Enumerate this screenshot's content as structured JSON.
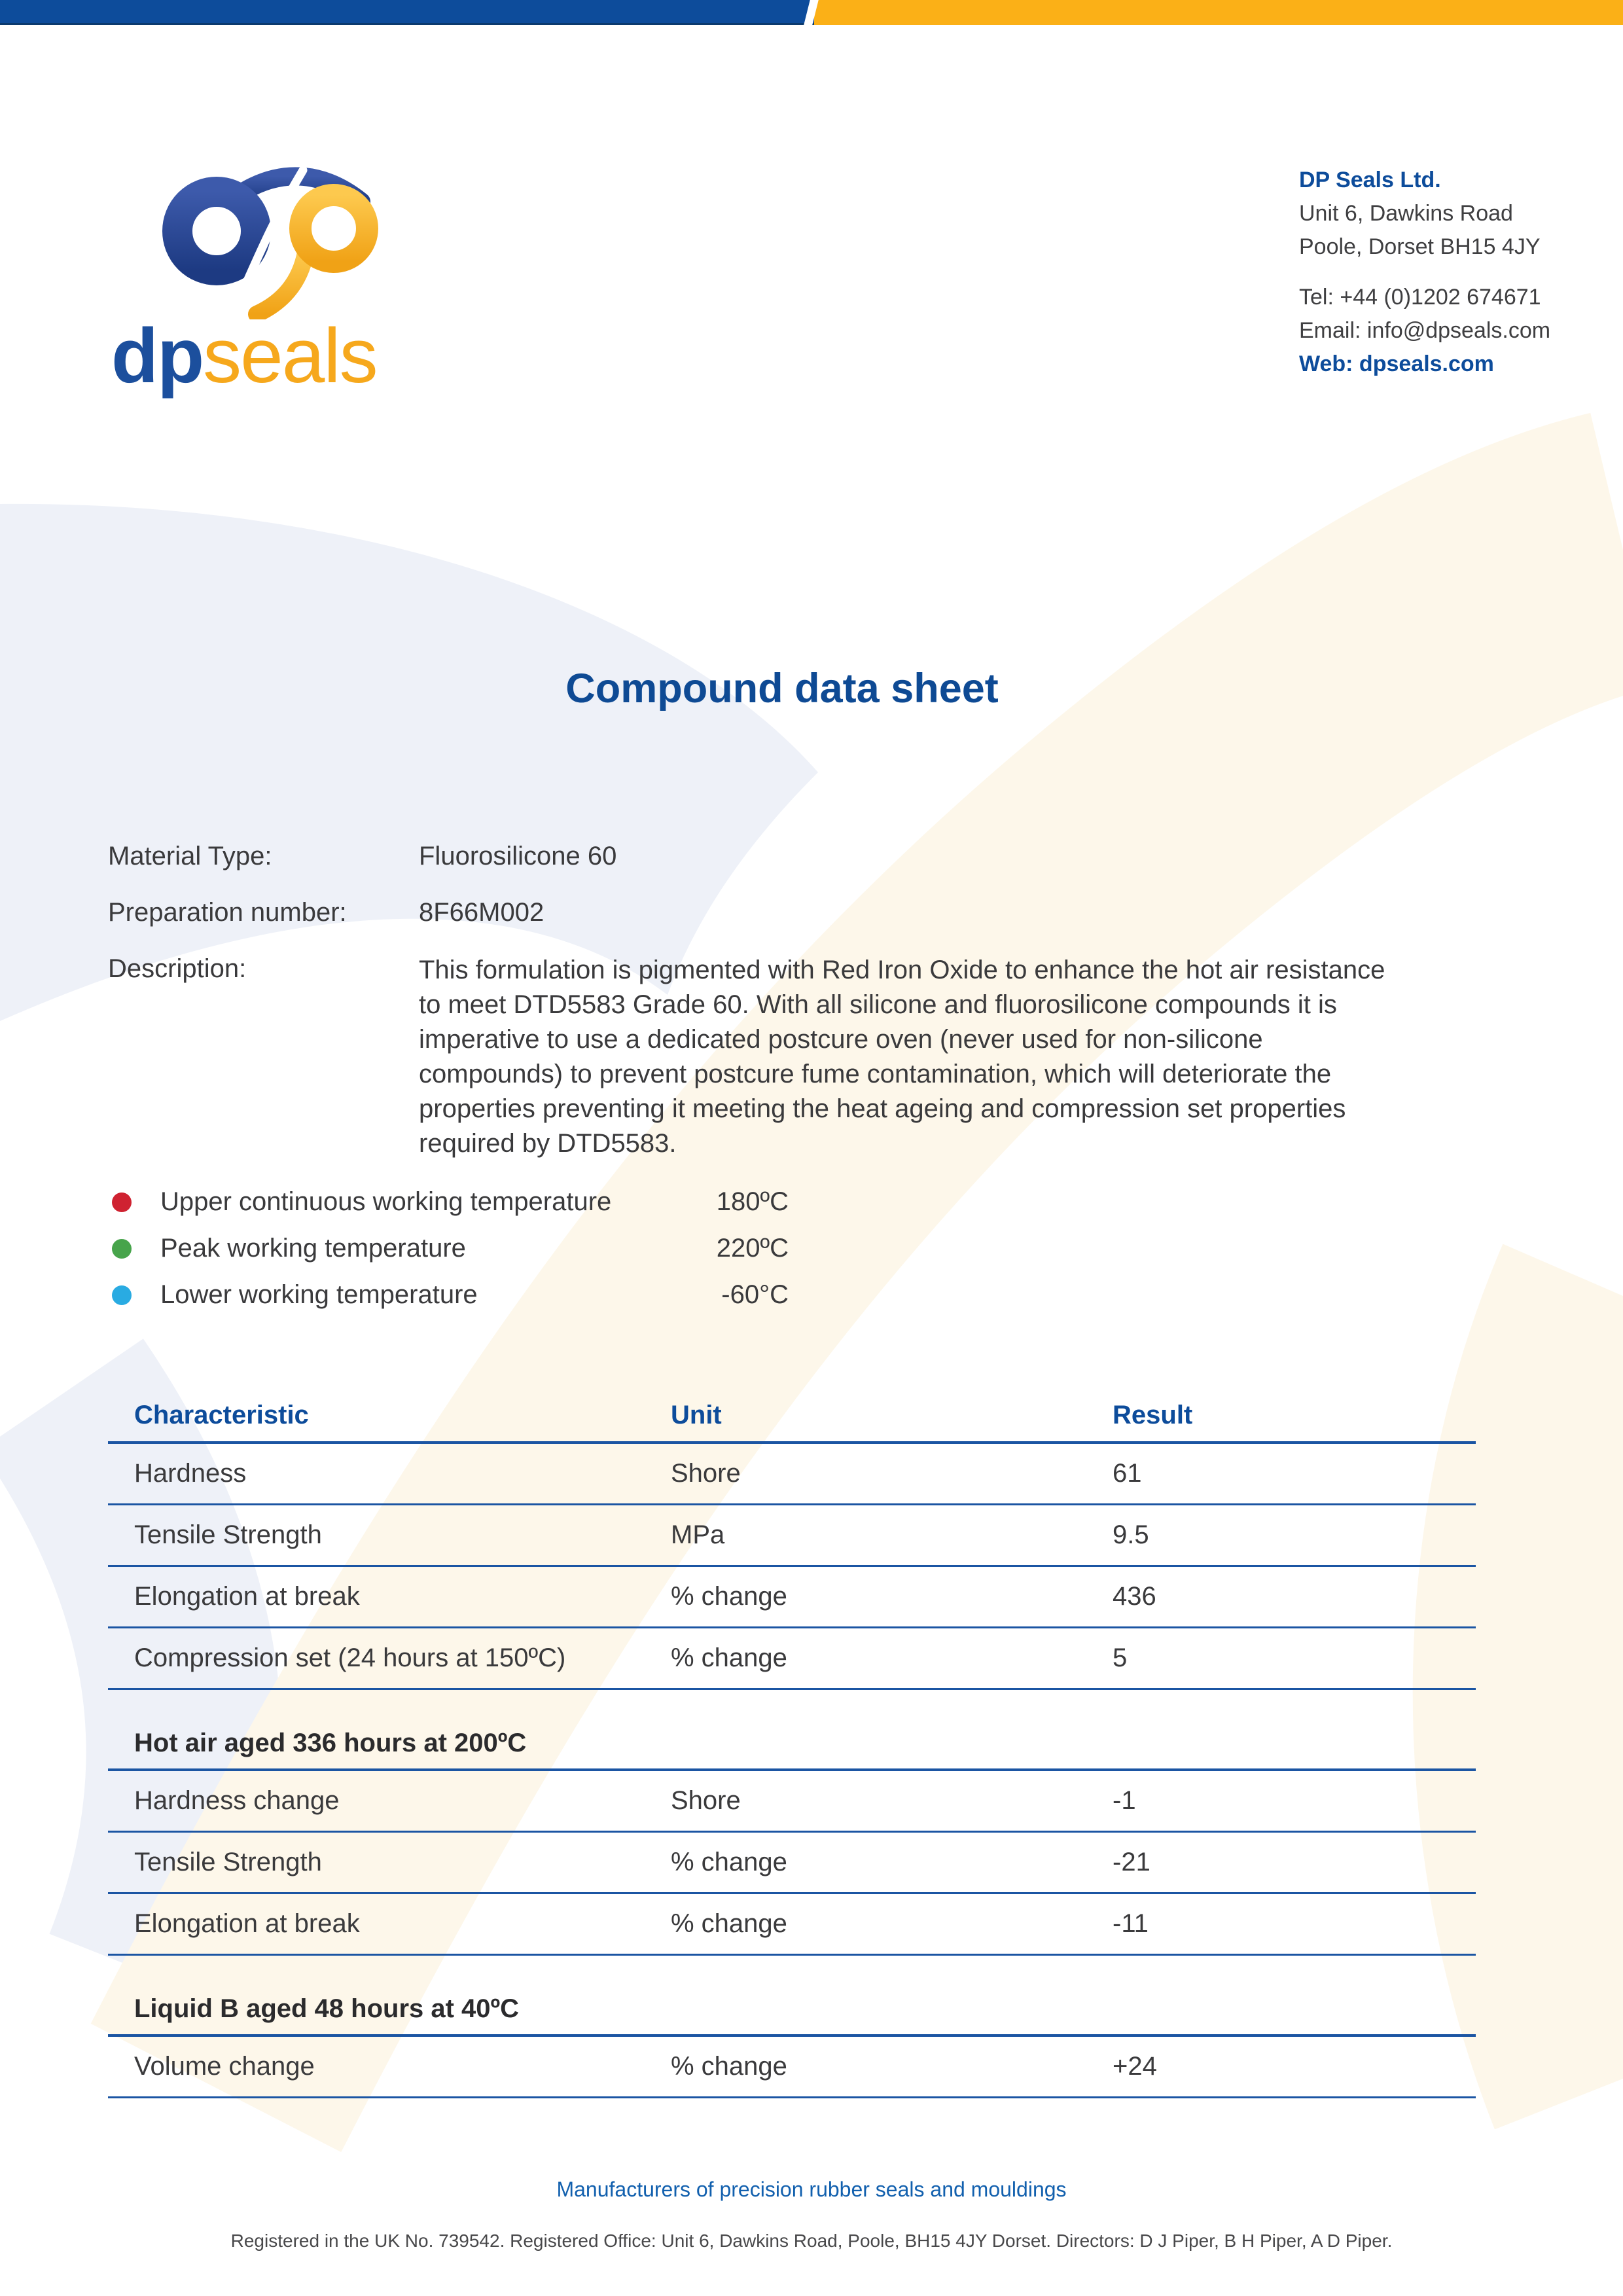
{
  "colors": {
    "bar_blue": "#0d4c9b",
    "bar_orange": "#fbb017",
    "heading_blue": "#0e4a94",
    "table_line_blue": "#1b55a3",
    "body_text": "#3a3a3c",
    "watermark_blue": "#eef1f8",
    "watermark_cream": "#fdf7ea",
    "bullet_red": "#cf2231",
    "bullet_green": "#47a44b",
    "bullet_blue": "#29abe2"
  },
  "logo": {
    "dp": "dp",
    "seals": "seals"
  },
  "contact": {
    "company": "DP Seals Ltd.",
    "address1": "Unit 6, Dawkins Road",
    "address2": "Poole, Dorset BH15 4JY",
    "tel": "Tel: +44 (0)1202 674671",
    "email": "Email: info@dpseals.com",
    "web": "Web: dpseals.com"
  },
  "title": "Compound data sheet",
  "info": {
    "material_label": "Material Type:",
    "material_value": "Fluorosilicone 60",
    "prep_label": "Preparation number:",
    "prep_value": "8F66M002",
    "desc_label": "Description:",
    "desc_value": "This formulation is pigmented with Red Iron Oxide to enhance the hot air resistance to meet DTD5583 Grade 60. With all silicone and fluorosilicone compounds it is imperative to use a dedicated postcure oven (never used for non-silicone compounds) to prevent postcure fume contamination, which will deteriorate the properties preventing it meeting the heat ageing and compression set properties required by DTD5583."
  },
  "temperatures": [
    {
      "color": "#cf2231",
      "label": "Upper continuous working temperature",
      "value": "180ºC"
    },
    {
      "color": "#47a44b",
      "label": "Peak working temperature",
      "value": "220ºC"
    },
    {
      "color": "#29abe2",
      "label": "Lower working temperature",
      "value": "-60°C"
    }
  ],
  "table": {
    "columns": [
      "Characteristic",
      "Unit",
      "Result"
    ],
    "groups": [
      {
        "header": null,
        "rows": [
          [
            "Hardness",
            "Shore",
            "61"
          ],
          [
            "Tensile Strength",
            "MPa",
            "9.5"
          ],
          [
            "Elongation at break",
            "% change",
            "436"
          ],
          [
            "Compression set (24 hours at 150ºC)",
            "% change",
            "5"
          ]
        ]
      },
      {
        "header": "Hot air aged 336 hours at 200ºC",
        "rows": [
          [
            "Hardness change",
            "Shore",
            "-1"
          ],
          [
            "Tensile Strength",
            "% change",
            "-21"
          ],
          [
            "Elongation at break",
            "% change",
            "-11"
          ]
        ]
      },
      {
        "header": "Liquid B aged 48 hours at 40ºC",
        "rows": [
          [
            "Volume change",
            "% change",
            "+24"
          ]
        ]
      }
    ]
  },
  "footer": {
    "tagline": "Manufacturers of precision rubber seals and mouldings",
    "registration": "Registered in the UK No. 739542. Registered Office: Unit 6, Dawkins Road, Poole, BH15 4JY Dorset. Directors: D J Piper, B H Piper, A D Piper."
  }
}
